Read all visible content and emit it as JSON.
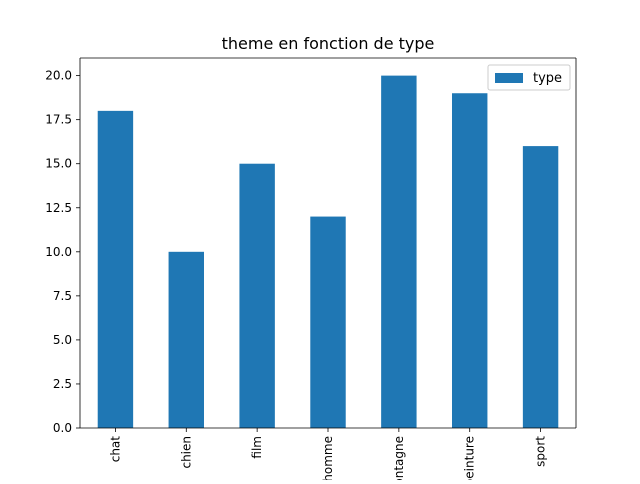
{
  "chart_data": {
    "type": "bar",
    "title": "theme en fonction de type",
    "xlabel": "",
    "ylabel": "",
    "categories": [
      "chat",
      "chien",
      "film",
      "homme",
      "montagne",
      "peinture",
      "sport"
    ],
    "series": [
      {
        "name": "type",
        "values": [
          18,
          10,
          15,
          12,
          20,
          19,
          16
        ],
        "color": "#1f77b4"
      }
    ],
    "ylim": [
      0,
      21
    ],
    "yticks": [
      0.0,
      2.5,
      5.0,
      7.5,
      10.0,
      12.5,
      15.0,
      17.5,
      20.0
    ],
    "ytick_labels": [
      "0.0",
      "2.5",
      "5.0",
      "7.5",
      "10.0",
      "12.5",
      "15.0",
      "17.5",
      "20.0"
    ],
    "grid": false,
    "legend_position": "top-right",
    "x_tick_rotation": "vertical"
  }
}
